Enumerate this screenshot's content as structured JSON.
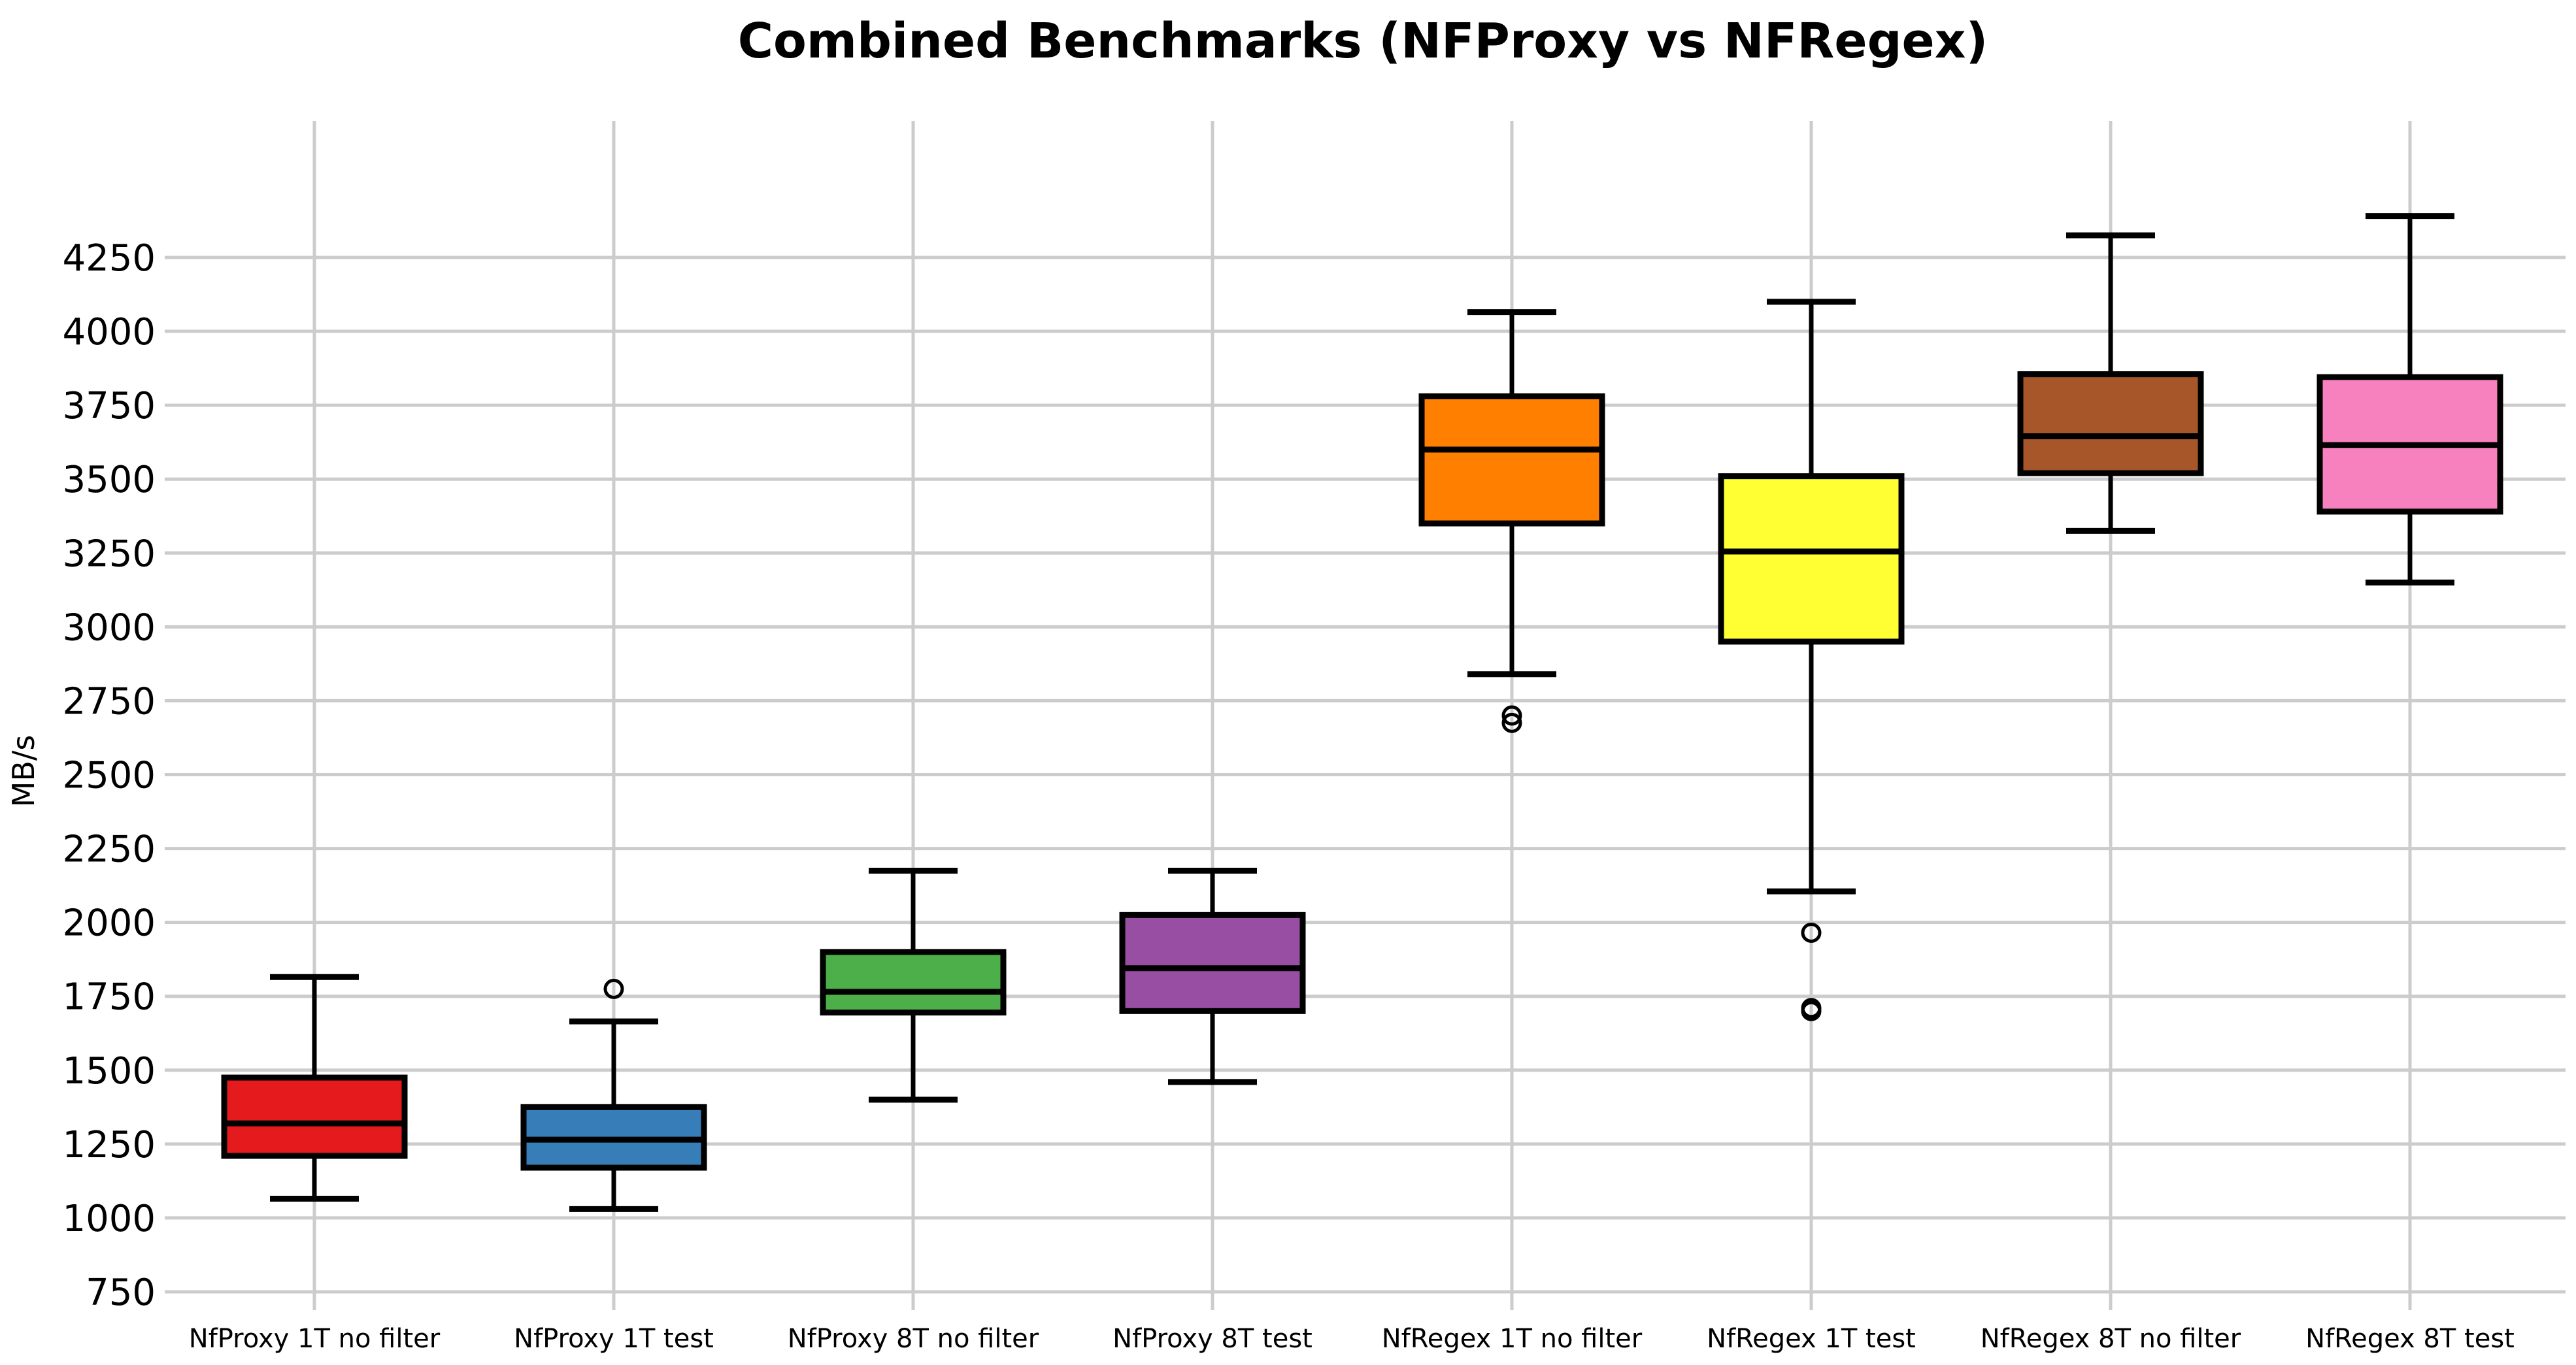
{
  "title": "Combined Benchmarks (NFProxy vs NFRegex)",
  "colors": {
    "background": "#ffffff",
    "grid": "#cccccc",
    "text": "#000000",
    "box_outline": "#000000"
  },
  "chart_data": {
    "type": "boxplot",
    "title": "Combined Benchmarks (NFProxy vs NFRegex)",
    "xlabel": "",
    "ylabel": "MB/s",
    "grid": true,
    "legend": "none",
    "ylim": [
      688,
      4723
    ],
    "y_ticks": [
      750,
      1000,
      1250,
      1500,
      1750,
      2000,
      2250,
      2500,
      2750,
      3000,
      3250,
      3500,
      3750,
      4000,
      4250
    ],
    "categories": [
      "NfProxy 1T no filter",
      "NfProxy 1T test",
      "NfProxy 8T no filter",
      "NfProxy 8T test",
      "NfRegex 1T no filter",
      "NfRegex 1T test",
      "NfRegex 8T no filter",
      "NfRegex 8T test"
    ],
    "series": [
      {
        "name": "NfProxy 1T no filter",
        "color": "#e41a1c",
        "whislo": 1065,
        "q1": 1210,
        "med": 1320,
        "q3": 1475,
        "whishi": 1815,
        "fliers": []
      },
      {
        "name": "NfProxy 1T test",
        "color": "#377eb8",
        "whislo": 1030,
        "q1": 1170,
        "med": 1265,
        "q3": 1375,
        "whishi": 1665,
        "fliers": [
          1775
        ]
      },
      {
        "name": "NfProxy 8T no filter",
        "color": "#4daf4a",
        "whislo": 1400,
        "q1": 1695,
        "med": 1765,
        "q3": 1900,
        "whishi": 2175,
        "fliers": []
      },
      {
        "name": "NfProxy 8T test",
        "color": "#984ea3",
        "whislo": 1460,
        "q1": 1700,
        "med": 1845,
        "q3": 2025,
        "whishi": 2175,
        "fliers": []
      },
      {
        "name": "NfRegex 1T no filter",
        "color": "#ff7f00",
        "whislo": 2840,
        "q1": 3350,
        "med": 3600,
        "q3": 3780,
        "whishi": 4065,
        "fliers": [
          2700,
          2675
        ]
      },
      {
        "name": "NfRegex 1T test",
        "color": "#ffff33",
        "whislo": 2105,
        "q1": 2950,
        "med": 3255,
        "q3": 3510,
        "whishi": 4100,
        "fliers": [
          1965,
          1710,
          1700
        ]
      },
      {
        "name": "NfRegex 8T no filter",
        "color": "#a65628",
        "whislo": 3325,
        "q1": 3520,
        "med": 3645,
        "q3": 3855,
        "whishi": 4325,
        "fliers": []
      },
      {
        "name": "NfRegex 8T test",
        "color": "#f781bf",
        "whislo": 3150,
        "q1": 3390,
        "med": 3615,
        "q3": 3845,
        "whishi": 4390,
        "fliers": []
      }
    ]
  }
}
